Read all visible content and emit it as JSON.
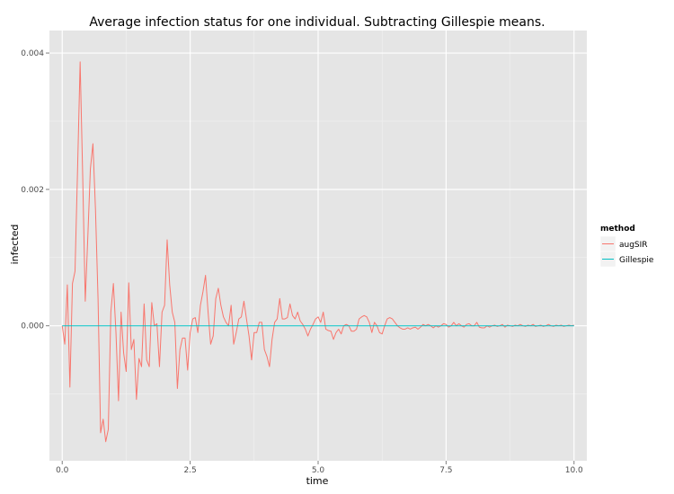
{
  "chart_data": {
    "type": "line",
    "title": "Average infection status for one individual. Subtracting Gillespie means.",
    "xlabel": "time",
    "ylabel": "infected",
    "xlim": [
      -0.25,
      10.25
    ],
    "ylim": [
      -0.00198,
      0.00433
    ],
    "x_ticks": [
      0.0,
      2.5,
      5.0,
      7.5,
      10.0
    ],
    "x_tick_labels": [
      "0.0",
      "2.5",
      "5.0",
      "7.5",
      "10.0"
    ],
    "y_ticks": [
      0.0,
      0.002,
      0.004
    ],
    "y_tick_labels": [
      "0.000",
      "0.002",
      "0.004"
    ],
    "grid": true,
    "legend": {
      "title": "method",
      "position": "right",
      "entries": [
        {
          "label": "augSIR",
          "color": "#F8766D"
        },
        {
          "label": "Gillespie",
          "color": "#00BFC4"
        }
      ]
    },
    "series": [
      {
        "name": "augSIR",
        "color": "#F8766D",
        "points": [
          [
            0.0,
            0.0
          ],
          [
            0.05,
            -0.00027
          ],
          [
            0.1,
            0.0006
          ],
          [
            0.15,
            -0.0009
          ],
          [
            0.2,
            0.00062
          ],
          [
            0.25,
            0.0008
          ],
          [
            0.3,
            0.0023
          ],
          [
            0.35,
            0.00387
          ],
          [
            0.4,
            0.0022
          ],
          [
            0.45,
            0.00036
          ],
          [
            0.5,
            0.0013
          ],
          [
            0.55,
            0.0023
          ],
          [
            0.6,
            0.00267
          ],
          [
            0.65,
            0.0017
          ],
          [
            0.7,
            0.0004
          ],
          [
            0.75,
            -0.00157
          ],
          [
            0.8,
            -0.00137
          ],
          [
            0.85,
            -0.0017
          ],
          [
            0.9,
            -0.00152
          ],
          [
            0.95,
            0.0002
          ],
          [
            1.0,
            0.00062
          ],
          [
            1.05,
            -0.0001
          ],
          [
            1.1,
            -0.0011
          ],
          [
            1.15,
            0.0002
          ],
          [
            1.2,
            -0.0004
          ],
          [
            1.25,
            -0.00067
          ],
          [
            1.3,
            0.00063
          ],
          [
            1.35,
            -0.00035
          ],
          [
            1.4,
            -0.0002
          ],
          [
            1.45,
            -0.00108
          ],
          [
            1.5,
            -0.00048
          ],
          [
            1.55,
            -0.0006
          ],
          [
            1.6,
            0.00032
          ],
          [
            1.65,
            -0.0005
          ],
          [
            1.7,
            -0.0006
          ],
          [
            1.75,
            0.00034
          ],
          [
            1.8,
            0.0
          ],
          [
            1.85,
            3e-05
          ],
          [
            1.9,
            -0.0006
          ],
          [
            1.95,
            0.0002
          ],
          [
            2.0,
            0.0003
          ],
          [
            2.05,
            0.00126
          ],
          [
            2.1,
            0.0006
          ],
          [
            2.15,
            0.0002
          ],
          [
            2.2,
            5e-05
          ],
          [
            2.25,
            -0.00092
          ],
          [
            2.3,
            -0.00035
          ],
          [
            2.35,
            -0.00018
          ],
          [
            2.4,
            -0.00018
          ],
          [
            2.45,
            -0.00065
          ],
          [
            2.5,
            -0.0001
          ],
          [
            2.55,
            0.0001
          ],
          [
            2.6,
            0.00012
          ],
          [
            2.65,
            -0.0001
          ],
          [
            2.7,
            0.0003
          ],
          [
            2.75,
            0.0005
          ],
          [
            2.8,
            0.00074
          ],
          [
            2.85,
            0.0002
          ],
          [
            2.9,
            -0.00027
          ],
          [
            2.95,
            -0.00015
          ],
          [
            3.0,
            0.0004
          ],
          [
            3.05,
            0.00055
          ],
          [
            3.1,
            0.0003
          ],
          [
            3.15,
            0.00013
          ],
          [
            3.2,
            5e-05
          ],
          [
            3.25,
            0.0
          ],
          [
            3.3,
            0.0003
          ],
          [
            3.35,
            -0.00027
          ],
          [
            3.4,
            -0.0001
          ],
          [
            3.45,
            0.0001
          ],
          [
            3.5,
            0.00013
          ],
          [
            3.55,
            0.00036
          ],
          [
            3.6,
            0.0001
          ],
          [
            3.65,
            -0.00015
          ],
          [
            3.7,
            -0.0005
          ],
          [
            3.75,
            -0.0001
          ],
          [
            3.8,
            -0.0001
          ],
          [
            3.85,
            5e-05
          ],
          [
            3.9,
            5e-05
          ],
          [
            3.95,
            -0.00035
          ],
          [
            4.0,
            -0.00045
          ],
          [
            4.05,
            -0.0006
          ],
          [
            4.1,
            -0.0002
          ],
          [
            4.15,
            5e-05
          ],
          [
            4.2,
            0.0001
          ],
          [
            4.25,
            0.0004
          ],
          [
            4.3,
            0.0001
          ],
          [
            4.35,
            0.0001
          ],
          [
            4.4,
            0.00012
          ],
          [
            4.45,
            0.00032
          ],
          [
            4.5,
            0.00015
          ],
          [
            4.55,
            0.0001
          ],
          [
            4.6,
            0.0002
          ],
          [
            4.65,
            7e-05
          ],
          [
            4.7,
            2e-05
          ],
          [
            4.75,
            -5e-05
          ],
          [
            4.8,
            -0.00015
          ],
          [
            4.85,
            -5e-05
          ],
          [
            4.9,
            2e-05
          ],
          [
            4.95,
            0.0001
          ],
          [
            5.0,
            0.00013
          ],
          [
            5.05,
            5e-05
          ],
          [
            5.1,
            0.0002
          ],
          [
            5.15,
            -5e-05
          ],
          [
            5.2,
            -7e-05
          ],
          [
            5.25,
            -8e-05
          ],
          [
            5.3,
            -0.0002
          ],
          [
            5.35,
            -0.0001
          ],
          [
            5.4,
            -5e-05
          ],
          [
            5.45,
            -0.00012
          ],
          [
            5.5,
            0.0
          ],
          [
            5.55,
            2e-05
          ],
          [
            5.6,
            0.0
          ],
          [
            5.65,
            -8e-05
          ],
          [
            5.7,
            -8e-05
          ],
          [
            5.75,
            -5e-05
          ],
          [
            5.8,
            0.0001
          ],
          [
            5.85,
            0.00013
          ],
          [
            5.9,
            0.00015
          ],
          [
            5.95,
            0.00013
          ],
          [
            6.0,
            5e-05
          ],
          [
            6.05,
            -0.0001
          ],
          [
            6.1,
            5e-05
          ],
          [
            6.15,
            0.0
          ],
          [
            6.2,
            -0.0001
          ],
          [
            6.25,
            -0.00012
          ],
          [
            6.3,
            0.0
          ],
          [
            6.35,
            0.0001
          ],
          [
            6.4,
            0.00012
          ],
          [
            6.45,
            0.0001
          ],
          [
            6.5,
            5e-05
          ],
          [
            6.55,
            0.0
          ],
          [
            6.6,
            -3e-05
          ],
          [
            6.65,
            -5e-05
          ],
          [
            6.7,
            -5e-05
          ],
          [
            6.75,
            -3e-05
          ],
          [
            6.8,
            -5e-05
          ],
          [
            6.85,
            -3e-05
          ],
          [
            6.9,
            -2e-05
          ],
          [
            6.95,
            -5e-05
          ],
          [
            7.0,
            -2e-05
          ],
          [
            7.05,
            2e-05
          ],
          [
            7.1,
            0.0
          ],
          [
            7.15,
            2e-05
          ],
          [
            7.2,
            0.0
          ],
          [
            7.25,
            -3e-05
          ],
          [
            7.3,
            0.0
          ],
          [
            7.35,
            -2e-05
          ],
          [
            7.4,
            0.0
          ],
          [
            7.45,
            3e-05
          ],
          [
            7.5,
            2e-05
          ],
          [
            7.55,
            -2e-05
          ],
          [
            7.6,
            0.0
          ],
          [
            7.65,
            5e-05
          ],
          [
            7.7,
            0.0
          ],
          [
            7.75,
            3e-05
          ],
          [
            7.8,
            0.0
          ],
          [
            7.85,
            -2e-05
          ],
          [
            7.9,
            2e-05
          ],
          [
            7.95,
            3e-05
          ],
          [
            8.0,
            0.0
          ],
          [
            8.05,
            0.0
          ],
          [
            8.1,
            5e-05
          ],
          [
            8.15,
            -2e-05
          ],
          [
            8.2,
            -3e-05
          ],
          [
            8.25,
            -3e-05
          ],
          [
            8.3,
            0.0
          ],
          [
            8.35,
            -2e-05
          ],
          [
            8.4,
            0.0
          ],
          [
            8.45,
            1e-05
          ],
          [
            8.5,
            -1e-05
          ],
          [
            8.55,
            0.0
          ],
          [
            8.6,
            2e-05
          ],
          [
            8.65,
            -2e-05
          ],
          [
            8.7,
            1e-05
          ],
          [
            8.75,
            0.0
          ],
          [
            8.8,
            -1e-05
          ],
          [
            8.85,
            1e-05
          ],
          [
            8.9,
            0.0
          ],
          [
            8.95,
            2e-05
          ],
          [
            9.0,
            0.0
          ],
          [
            9.05,
            -1e-05
          ],
          [
            9.1,
            1e-05
          ],
          [
            9.15,
            0.0
          ],
          [
            9.2,
            2e-05
          ],
          [
            9.25,
            -1e-05
          ],
          [
            9.3,
            0.0
          ],
          [
            9.35,
            1e-05
          ],
          [
            9.4,
            -1e-05
          ],
          [
            9.45,
            0.0
          ],
          [
            9.5,
            2e-05
          ],
          [
            9.55,
            0.0
          ],
          [
            9.6,
            -1e-05
          ],
          [
            9.65,
            1e-05
          ],
          [
            9.7,
            0.0
          ],
          [
            9.75,
            1e-05
          ],
          [
            9.8,
            -1e-05
          ],
          [
            9.85,
            0.0
          ],
          [
            9.9,
            1e-05
          ],
          [
            9.95,
            0.0
          ],
          [
            10.0,
            1e-05
          ]
        ]
      },
      {
        "name": "Gillespie",
        "color": "#00BFC4",
        "points": [
          [
            0.0,
            0.0
          ],
          [
            10.0,
            0.0
          ]
        ]
      }
    ]
  }
}
